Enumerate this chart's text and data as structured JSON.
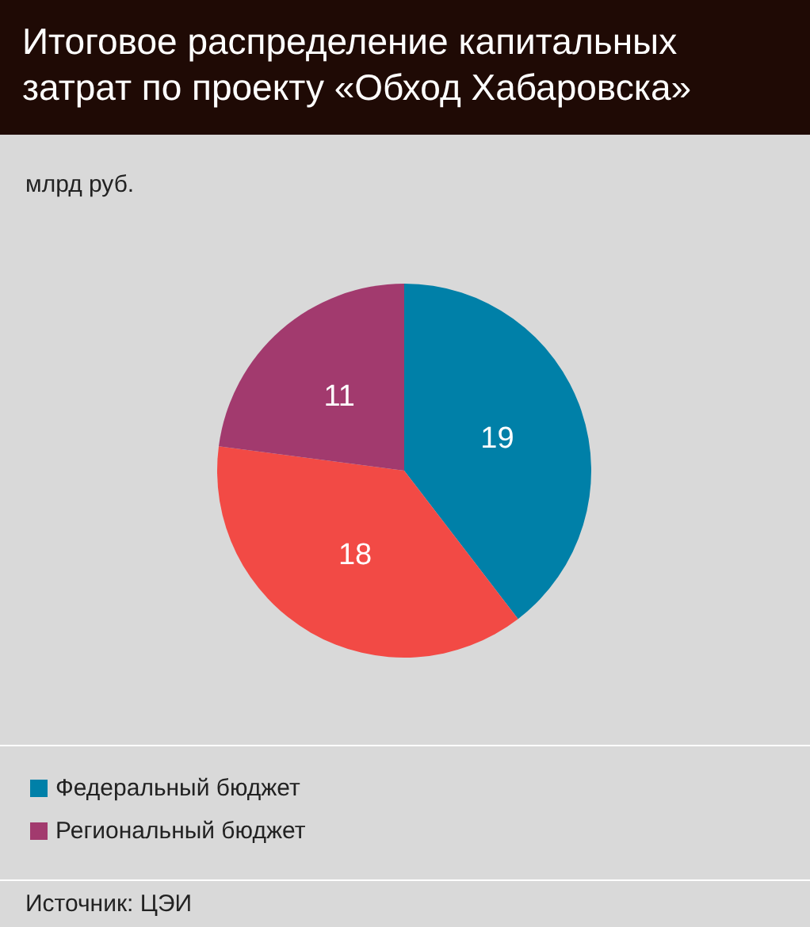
{
  "chart_data": {
    "type": "pie",
    "title": "Итоговое распределение капитальных затрат по проекту «Обход Хабаровска»",
    "subtitle": "млрд руб.",
    "categories": [
      "Федеральный бюджет",
      null,
      "Региональный бюджет"
    ],
    "values": [
      19,
      18,
      11
    ],
    "colors": [
      "#0080a8",
      "#f24a45",
      "#a23a6e"
    ],
    "data_labels": true,
    "legend": "bottom left",
    "annotations": [
      "Источник: ЦЭИ"
    ]
  }
}
